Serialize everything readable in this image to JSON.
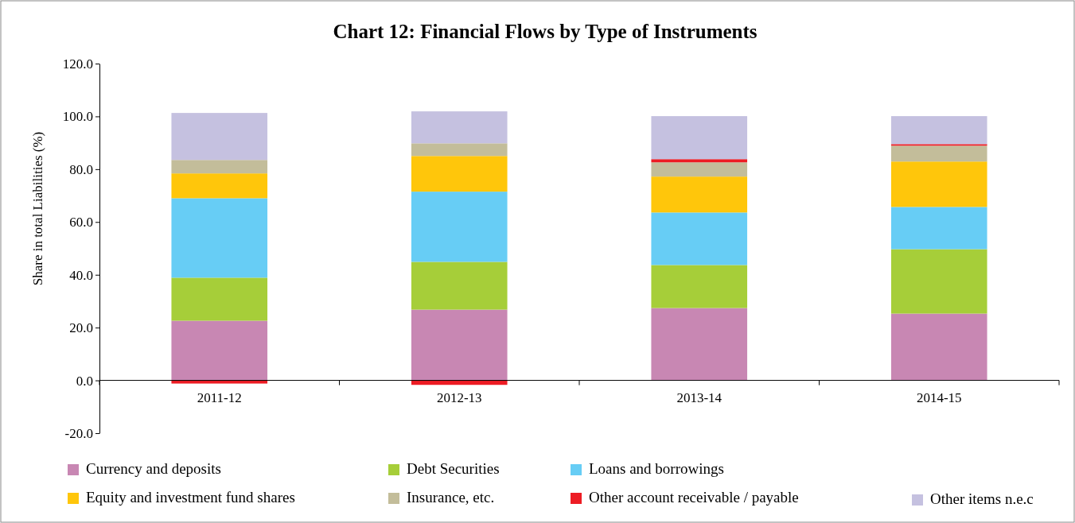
{
  "chart_data": {
    "type": "bar",
    "title": "Chart 12: Financial Flows by Type of Instruments",
    "ylabel": "Share in total Liabilities (%)",
    "stacked": true,
    "legend": "bottom",
    "categories": [
      "2011-12",
      "2012-13",
      "2013-14",
      "2014-15"
    ],
    "ylim": [
      -20,
      120
    ],
    "yticks": [
      {
        "value": -20,
        "label": "-20.0"
      },
      {
        "value": 0,
        "label": "0.0"
      },
      {
        "value": 20,
        "label": "20.0"
      },
      {
        "value": 40,
        "label": "40.0"
      },
      {
        "value": 60,
        "label": "60.0"
      },
      {
        "value": 80,
        "label": "80.0"
      },
      {
        "value": 100,
        "label": "100.0"
      },
      {
        "value": 120,
        "label": "120.0"
      }
    ],
    "series": [
      {
        "name": "Currency and deposits",
        "color": "#c887b3",
        "values": [
          22.6,
          26.8,
          27.4,
          25.3
        ]
      },
      {
        "name": "Debt Securities",
        "color": "#a6ce39",
        "values": [
          16.3,
          18.1,
          16.3,
          24.4
        ]
      },
      {
        "name": "Loans and borrowings",
        "color": "#67cdf5",
        "values": [
          30.1,
          26.6,
          19.9,
          16.0
        ]
      },
      {
        "name": "Equity and investment fund shares",
        "color": "#ffc60b",
        "values": [
          9.4,
          13.5,
          13.6,
          17.2
        ]
      },
      {
        "name": "Insurance, etc.",
        "color": "#c3bd9a",
        "values": [
          5.1,
          4.8,
          5.4,
          6.0
        ]
      },
      {
        "name": "Other account receivable / payable",
        "color": "#ed1c24",
        "values": [
          -1.2,
          -1.7,
          1.2,
          0.6
        ]
      },
      {
        "name": "Other items n.e.c",
        "color": "#c5c1e0",
        "values": [
          17.8,
          12.1,
          16.3,
          10.6
        ]
      }
    ]
  }
}
